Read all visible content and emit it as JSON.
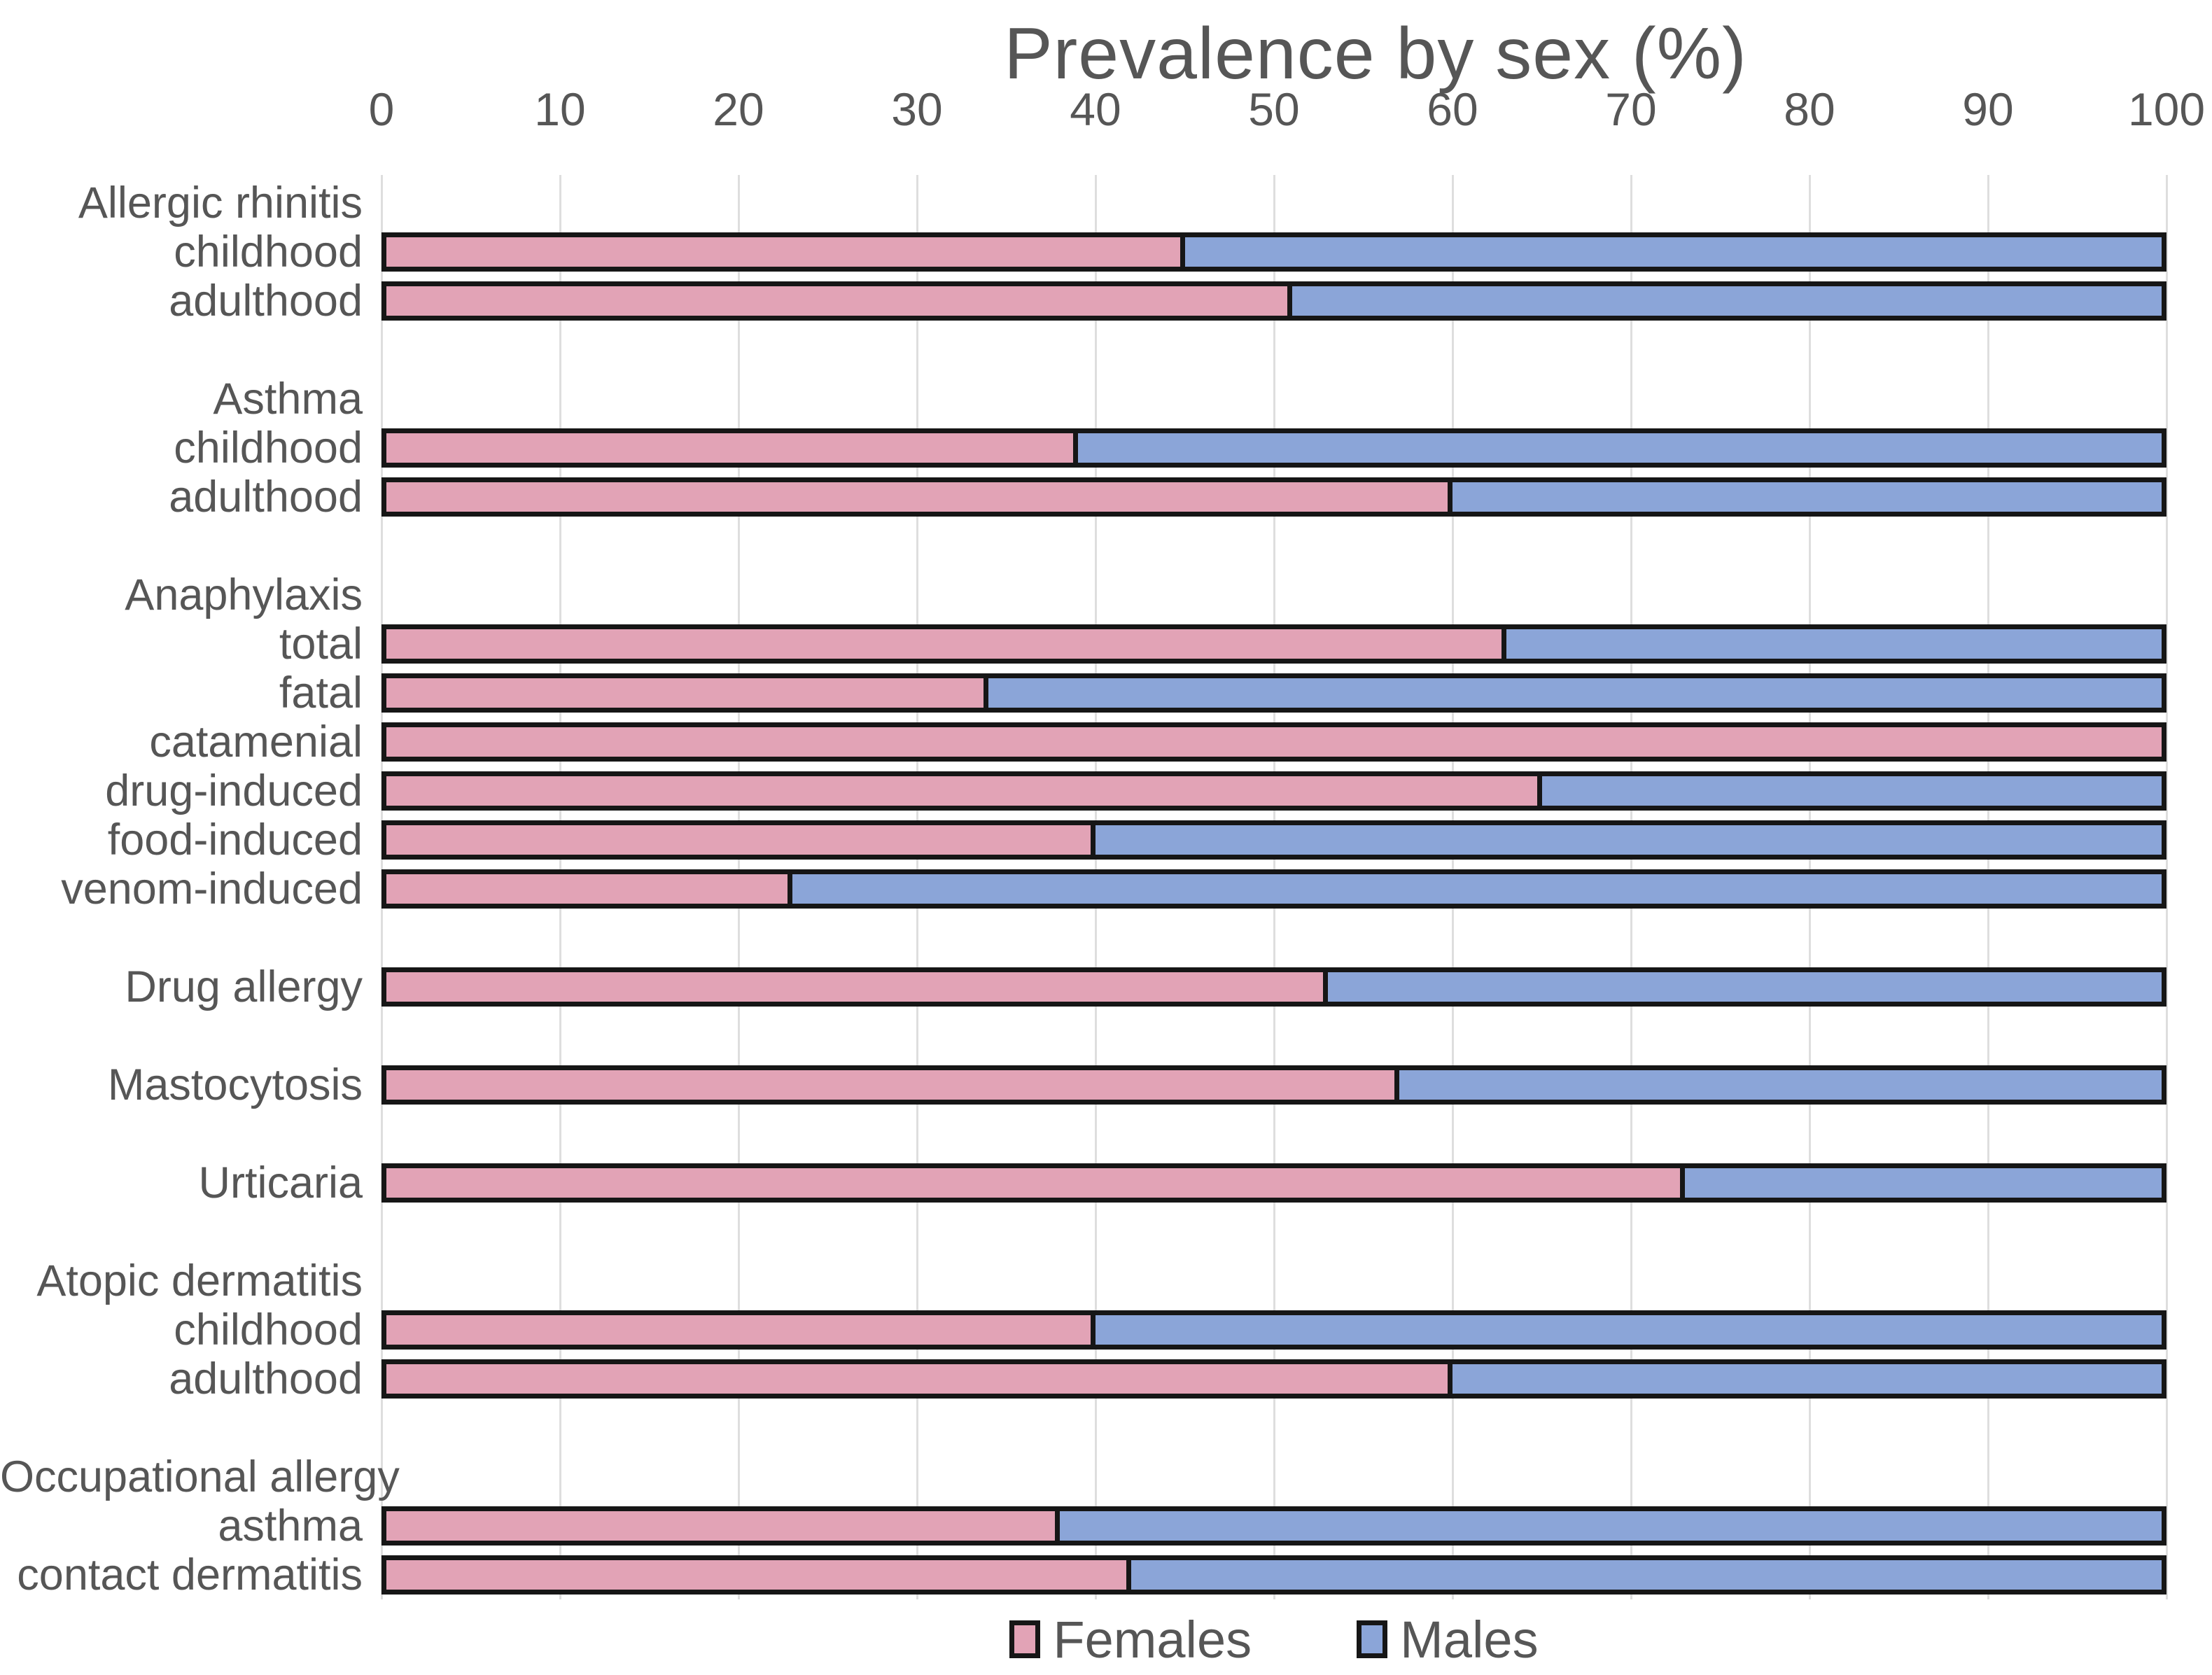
{
  "chart_data": {
    "type": "bar",
    "orientation": "horizontal-stacked",
    "title": "Prevalence by sex (%)",
    "x_axis": {
      "position": "top",
      "min": 0,
      "max": 100,
      "ticks": [
        0,
        10,
        20,
        30,
        40,
        50,
        60,
        70,
        80,
        90,
        100
      ],
      "grid": true
    },
    "legend": {
      "position": "bottom",
      "entries": [
        {
          "label": "Females",
          "color": "#e2a3b6"
        },
        {
          "label": "Males",
          "color": "#8ba5d8"
        }
      ]
    },
    "colors": {
      "females": "#e2a3b6",
      "males": "#8ba5d8",
      "bar_border": "#161616",
      "gridline": "#dedede",
      "text": "#565656"
    },
    "rows": [
      {
        "type": "header",
        "label": "Allergic rhinitis"
      },
      {
        "type": "bar",
        "label": "childhood",
        "females": 45,
        "males": 55
      },
      {
        "type": "bar",
        "label": "adulthood",
        "females": 51,
        "males": 49
      },
      {
        "type": "gap",
        "label": ""
      },
      {
        "type": "header",
        "label": "Asthma"
      },
      {
        "type": "bar",
        "label": "childhood",
        "females": 39,
        "males": 61
      },
      {
        "type": "bar",
        "label": "adulthood",
        "females": 60,
        "males": 40
      },
      {
        "type": "gap",
        "label": ""
      },
      {
        "type": "header",
        "label": "Anaphylaxis"
      },
      {
        "type": "bar",
        "label": "total",
        "females": 63,
        "males": 37
      },
      {
        "type": "bar",
        "label": "fatal",
        "females": 34,
        "males": 66
      },
      {
        "type": "bar",
        "label": "catamenial",
        "females": 100,
        "males": 0
      },
      {
        "type": "bar",
        "label": "drug-induced",
        "females": 65,
        "males": 35
      },
      {
        "type": "bar",
        "label": "food-induced",
        "females": 40,
        "males": 60
      },
      {
        "type": "bar",
        "label": "venom-induced",
        "females": 23,
        "males": 77
      },
      {
        "type": "gap",
        "label": ""
      },
      {
        "type": "bar",
        "label": "Drug allergy",
        "females": 53,
        "males": 47
      },
      {
        "type": "gap",
        "label": ""
      },
      {
        "type": "bar",
        "label": "Mastocytosis",
        "females": 57,
        "males": 43
      },
      {
        "type": "gap",
        "label": ""
      },
      {
        "type": "bar",
        "label": "Urticaria",
        "females": 73,
        "males": 27
      },
      {
        "type": "gap",
        "label": ""
      },
      {
        "type": "header",
        "label": "Atopic dermatitis"
      },
      {
        "type": "bar",
        "label": "childhood",
        "females": 40,
        "males": 60
      },
      {
        "type": "bar",
        "label": "adulthood",
        "females": 60,
        "males": 40
      },
      {
        "type": "gap",
        "label": ""
      },
      {
        "type": "header",
        "label": "Occupational allergy"
      },
      {
        "type": "bar",
        "label": "asthma",
        "females": 38,
        "males": 62
      },
      {
        "type": "bar",
        "label": "contact dermatitis",
        "females": 42,
        "males": 58
      }
    ]
  }
}
